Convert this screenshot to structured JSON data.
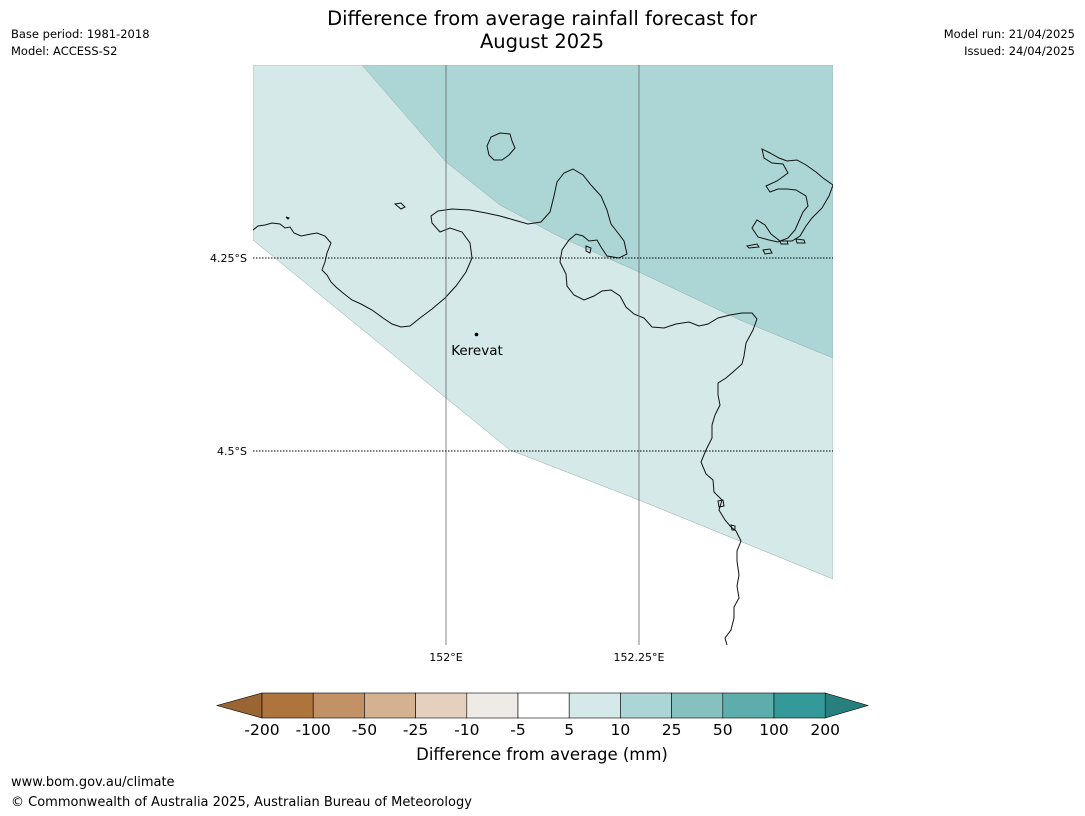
{
  "header": {
    "title_line1": "Difference from average rainfall forecast for",
    "title_line2": "August 2025",
    "base_period": "Base period: 1981-2018",
    "model": "Model: ACCESS-S2",
    "model_run": "Model run: 21/04/2025",
    "issued": "Issued: 24/04/2025"
  },
  "map": {
    "place_label": "Kerevat",
    "lat_labels": [
      "4.25°S",
      "4.5°S"
    ],
    "lon_labels": [
      "152°E",
      "152.25°E"
    ]
  },
  "colorbar": {
    "title": "Difference from average (mm)",
    "boundaries": [
      "-200",
      "-100",
      "-50",
      "-25",
      "-10",
      "-5",
      "5",
      "10",
      "25",
      "50",
      "100",
      "200"
    ],
    "colors": [
      "#ad743b",
      "#c29266",
      "#d4b191",
      "#e5d0bd",
      "#eeebe7",
      "#ffffff",
      "#d4e9e8",
      "#acd6d5",
      "#86c0bf",
      "#5eadad",
      "#339a99"
    ],
    "under_color": "#9a6532",
    "over_color": "#277f7e"
  },
  "footer": {
    "url": "www.bom.gov.au/climate",
    "copyright": "© Commonwealth of Australia 2025, Australian Bureau of Meteorology"
  }
}
